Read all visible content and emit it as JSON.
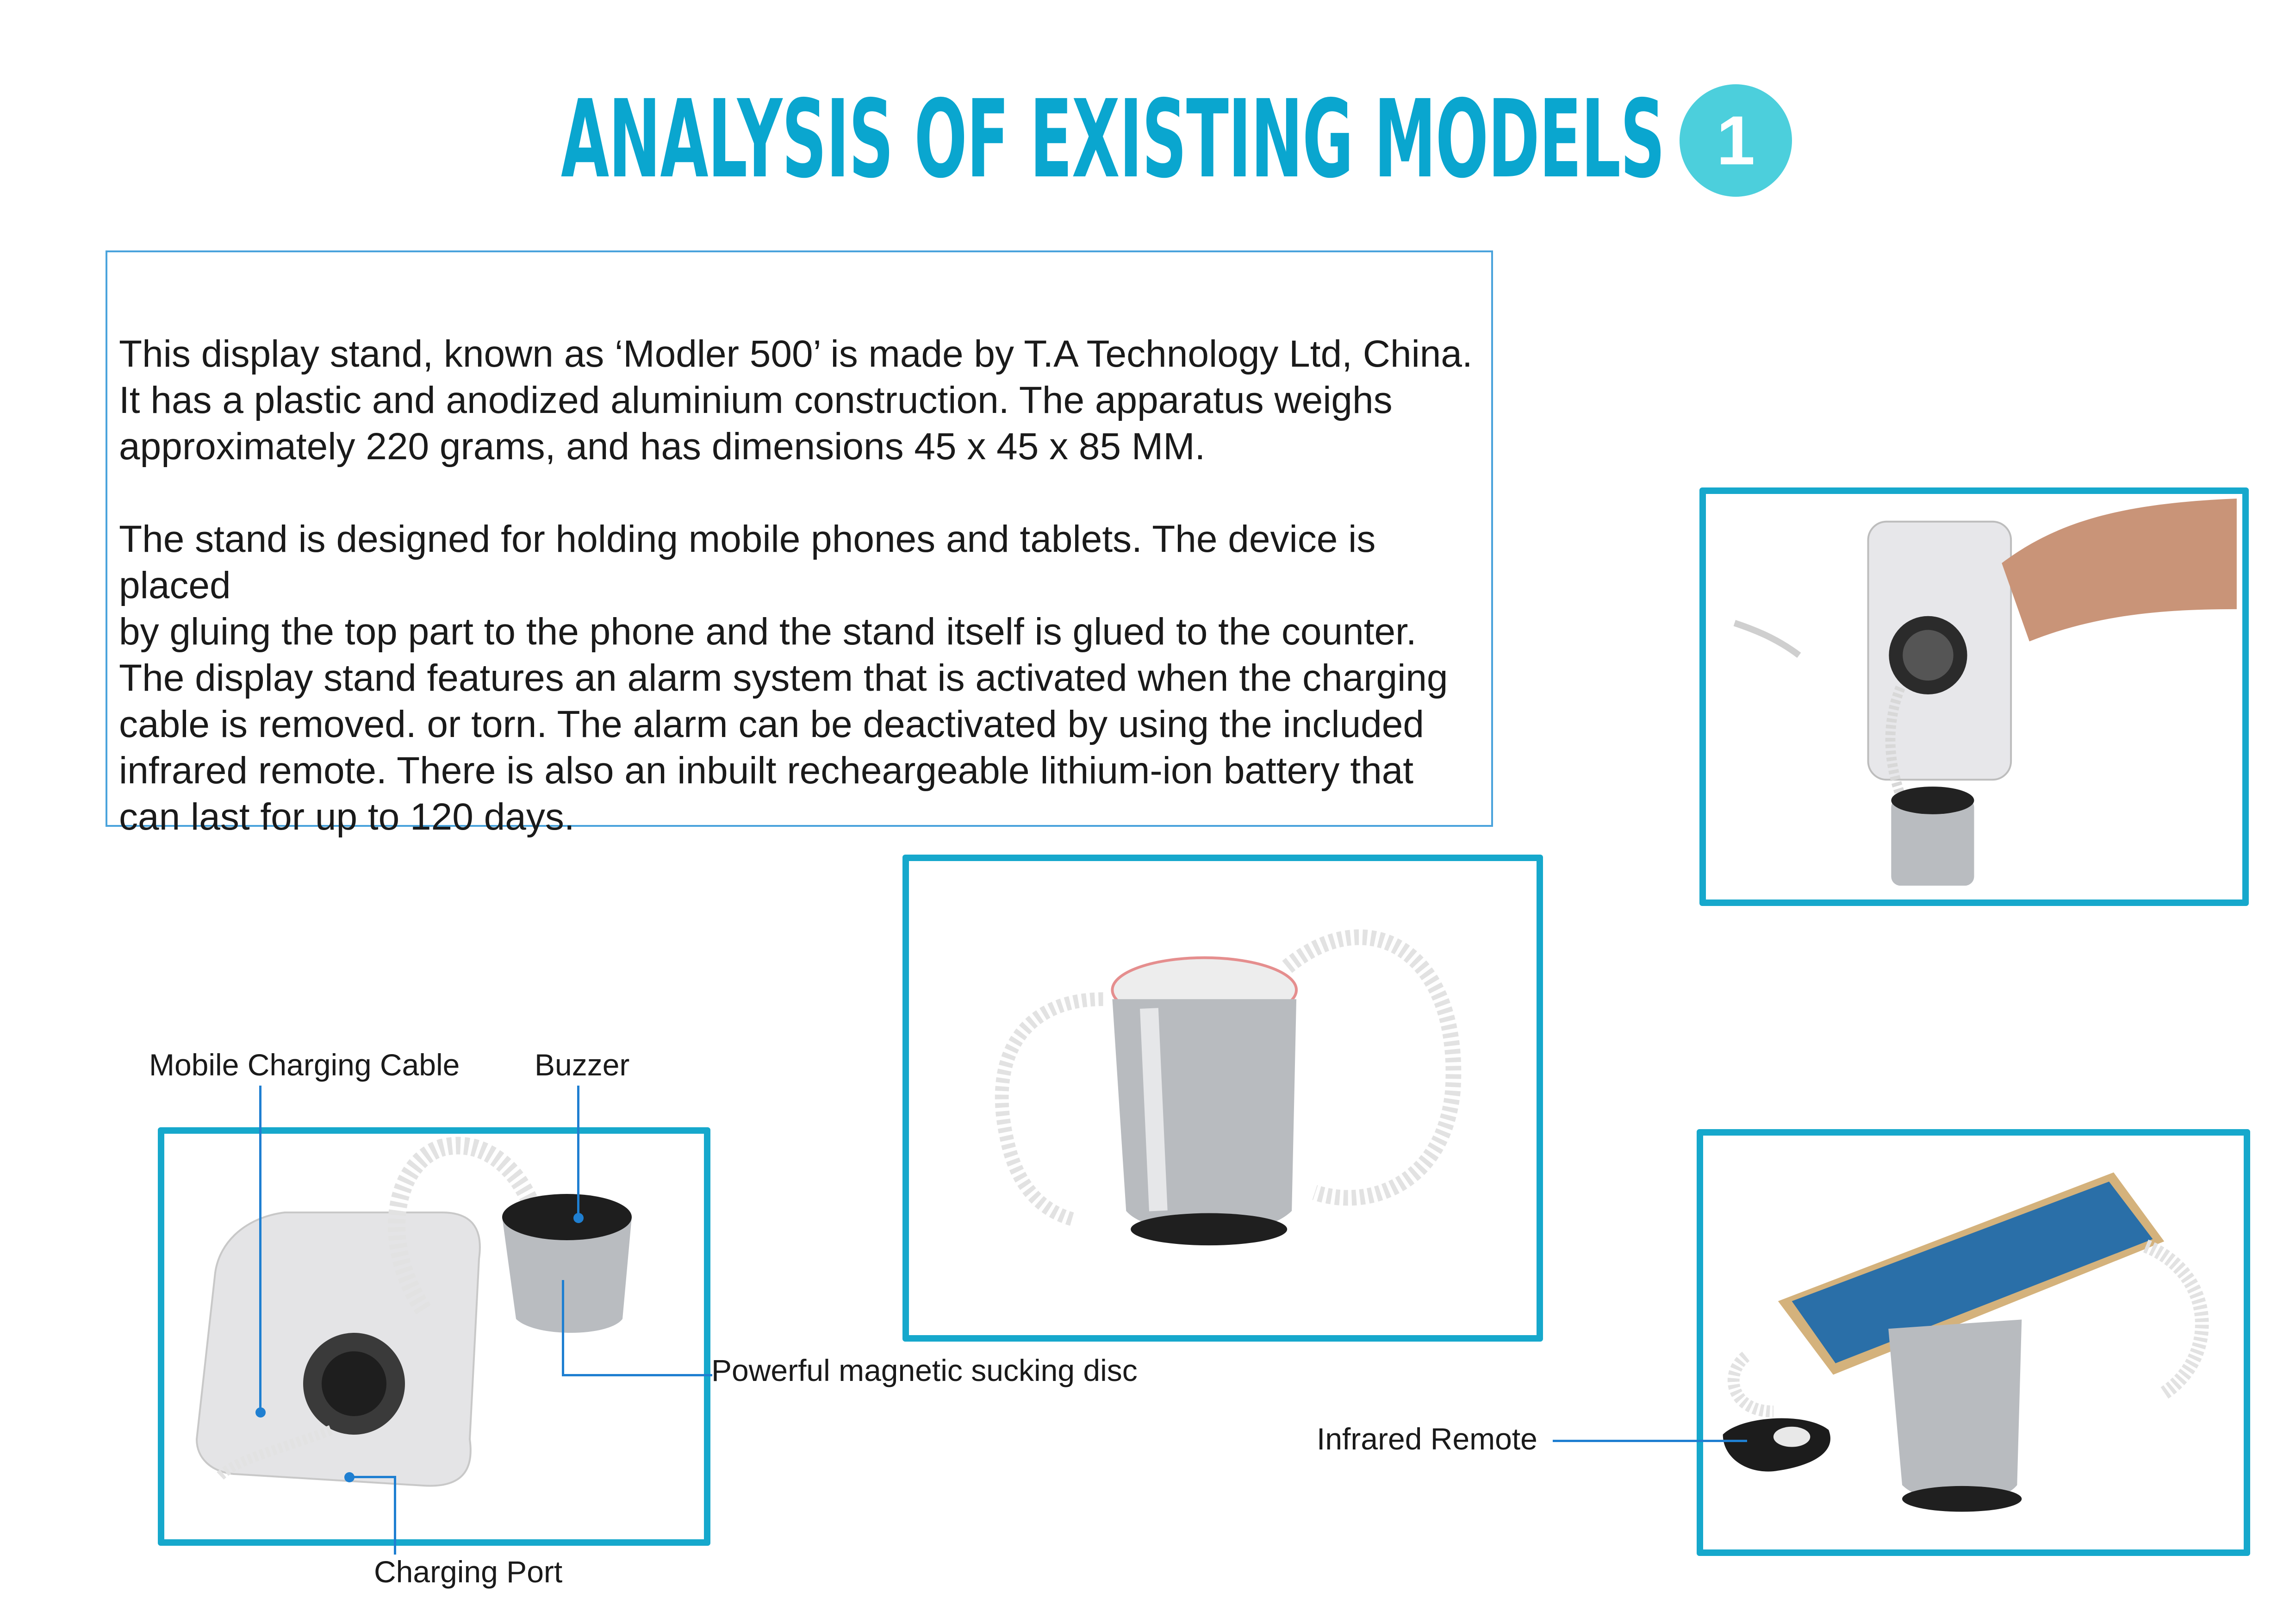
{
  "header": {
    "title": "ANALYSIS OF EXISTING MODELS",
    "badge_number": "1"
  },
  "description": {
    "paragraph_1": "This display stand, known as  ‘Modler 500’ is made by T.A Technology Ltd, China.\nIt has a plastic and anodized aluminium construction. The apparatus weighs\napproximately 220 grams, and has dimensions 45 x 45 x 85 MM.",
    "paragraph_2": "The stand is designed for holding mobile phones and tablets. The device is placed\nby gluing the top part to the phone and the stand itself is glued to the counter.\nThe display stand features an alarm system that is activated when the charging\ncable is removed. or torn. The alarm can be deactivated by using the included\ninfrared remote. There is also an inbuilt recheargeable lithium-ion battery that\ncan last for up to 120 days."
  },
  "annotations": {
    "mobile_charging_cable": "Mobile Charging Cable",
    "buzzer": "Buzzer",
    "magnetic_disc": "Powerful magnetic sucking disc",
    "charging_port": "Charging Port",
    "infrared_remote": "Infrared Remote"
  },
  "colors": {
    "title": "#0aa6cf",
    "badge": "#4ccfdc",
    "frame_border": "#16a8cc",
    "leader_line": "#1f7fd1"
  }
}
